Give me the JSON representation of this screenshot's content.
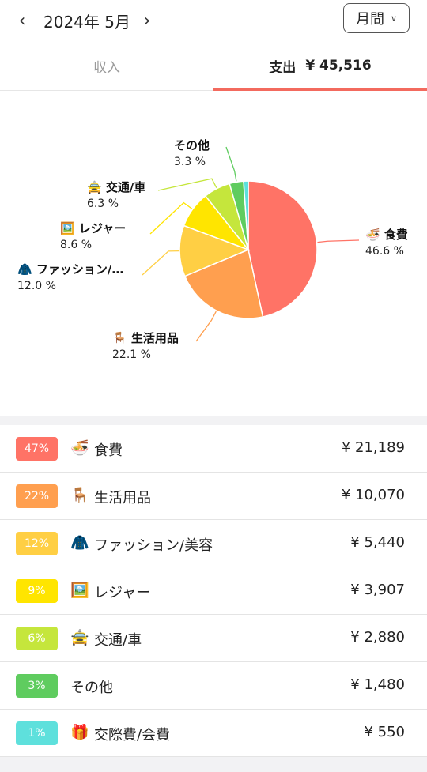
{
  "header": {
    "prev_icon": "chevron-left-icon",
    "month": "2024年 5月",
    "next_icon": "chevron-right-icon",
    "period_label": "月間"
  },
  "tabs": {
    "income_label": "収入",
    "expense_label": "支出",
    "expense_amount": "¥ 45,516"
  },
  "colors": {
    "accent": "#f36a5e"
  },
  "chart_data": {
    "type": "pie",
    "title": "",
    "slices": [
      {
        "name": "食費",
        "percent_label": "46.6 %",
        "value": 46.6,
        "icon": "🍜",
        "color": "#ff7366"
      },
      {
        "name": "生活用品",
        "percent_label": "22.1 %",
        "value": 22.1,
        "icon": "🪑",
        "color": "#ff9f4f"
      },
      {
        "name": "ファッション/…",
        "percent_label": "12.0 %",
        "value": 12.0,
        "icon": "🧥",
        "color": "#ffcf44"
      },
      {
        "name": "レジャー",
        "percent_label": "8.6 %",
        "value": 8.6,
        "icon": "🖼️",
        "color": "#ffe500"
      },
      {
        "name": "交通/車",
        "percent_label": "6.3 %",
        "value": 6.3,
        "icon": "🚖",
        "color": "#c5e63c"
      },
      {
        "name": "その他",
        "percent_label": "3.3 %",
        "value": 3.3,
        "icon": "",
        "color": "#5fcc5f"
      },
      {
        "name": "",
        "percent_label": "",
        "value": 1.1,
        "icon": "",
        "color": "#5ee0dc"
      }
    ]
  },
  "list": [
    {
      "badge": "47%",
      "color": "#ff7366",
      "icon": "🍜",
      "name": "食費",
      "amount": "¥ 21,189"
    },
    {
      "badge": "22%",
      "color": "#ff9f4f",
      "icon": "🪑",
      "name": "生活用品",
      "amount": "¥ 10,070"
    },
    {
      "badge": "12%",
      "color": "#ffcf44",
      "icon": "🧥",
      "name": "ファッション/美容",
      "amount": "¥ 5,440"
    },
    {
      "badge": "9%",
      "color": "#ffe500",
      "icon": "🖼️",
      "name": "レジャー",
      "amount": "¥ 3,907"
    },
    {
      "badge": "6%",
      "color": "#c5e63c",
      "icon": "🚖",
      "name": "交通/車",
      "amount": "¥ 2,880"
    },
    {
      "badge": "3%",
      "color": "#5fcc5f",
      "icon": "",
      "name": "その他",
      "amount": "¥ 1,480"
    },
    {
      "badge": "1%",
      "color": "#5ee0dc",
      "icon": "🎁",
      "name": "交際費/会費",
      "amount": "¥ 550"
    }
  ]
}
